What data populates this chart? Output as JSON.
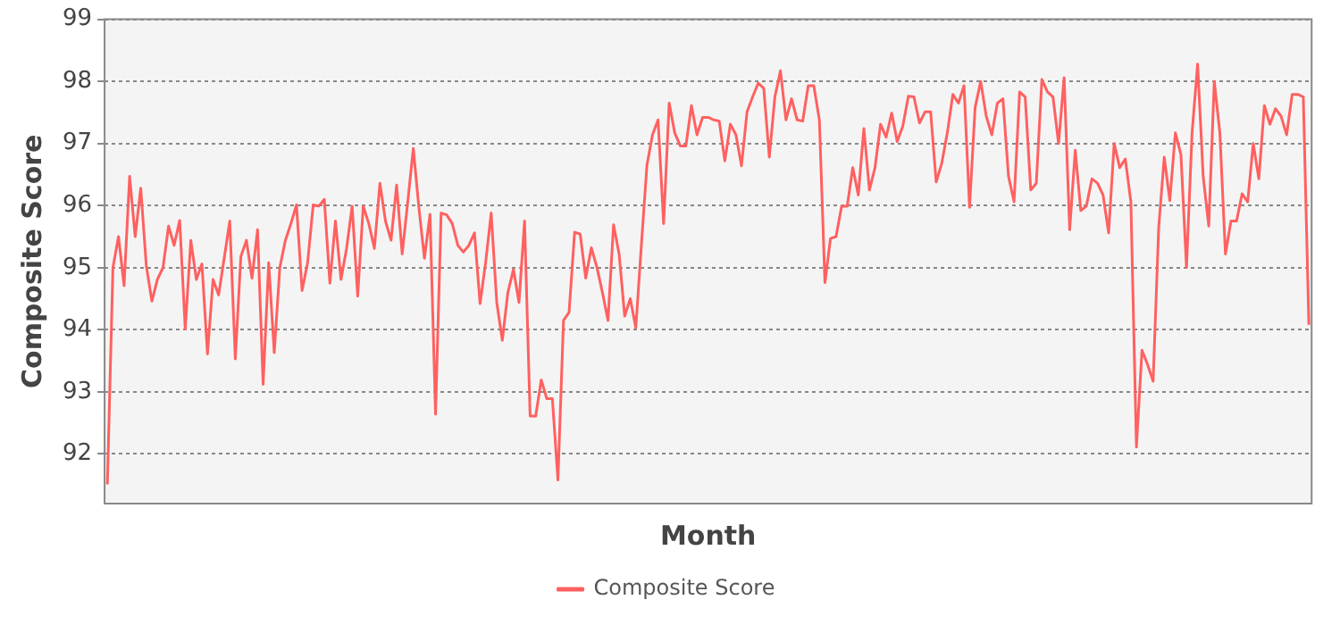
{
  "chart_data": {
    "type": "line",
    "xlabel": "Month",
    "ylabel": "Composite Score",
    "categories": [
      null,
      null,
      null,
      null,
      null,
      null,
      null,
      null,
      null,
      null,
      null,
      null,
      null,
      null,
      null,
      null,
      null,
      null,
      null,
      null,
      null,
      null,
      null,
      null,
      null,
      null,
      null,
      null,
      null,
      null,
      null,
      null,
      null,
      null,
      null,
      null,
      null,
      null,
      null,
      null,
      null,
      null,
      null,
      null,
      null,
      null,
      null,
      null,
      null,
      null,
      null,
      null,
      null,
      null,
      null,
      null,
      null,
      null,
      null,
      null,
      null,
      null,
      null,
      null,
      null,
      null,
      null,
      null,
      null,
      null,
      null,
      null,
      null,
      null,
      null,
      null,
      null,
      null,
      null,
      null,
      null,
      null,
      null,
      null,
      null,
      null,
      null,
      null,
      null,
      null,
      null,
      null,
      null,
      null,
      null,
      null,
      null,
      null,
      null,
      null,
      null,
      null,
      null,
      null,
      null,
      null,
      null,
      null,
      null,
      null,
      null,
      null,
      null,
      null,
      null,
      null,
      null,
      null,
      null,
      null,
      null,
      null,
      null,
      null,
      null,
      null,
      null,
      null,
      null,
      null,
      null,
      null,
      null,
      null,
      null,
      null,
      null,
      null,
      null,
      null,
      null,
      null,
      null,
      null,
      null,
      null,
      null,
      null,
      null,
      null,
      null,
      null,
      null,
      null,
      null,
      null,
      null,
      null,
      null,
      null,
      null,
      null,
      null,
      null,
      null,
      null,
      null,
      null,
      null,
      null,
      null,
      null,
      null,
      null,
      null,
      null,
      null,
      null,
      null,
      null,
      null,
      null,
      null,
      null,
      null,
      null,
      null,
      null,
      null,
      null,
      null,
      null,
      null,
      null,
      null,
      null,
      null,
      null,
      null,
      null,
      null,
      null,
      null,
      null,
      null,
      null,
      null,
      null,
      null,
      null,
      null,
      null,
      null,
      null,
      null,
      null,
      null
    ],
    "series": [
      {
        "name": "Composite Score",
        "color": "#ff6060",
        "values": [
          91.51,
          95.0,
          95.5,
          94.71,
          96.47,
          95.5,
          96.28,
          95.03,
          94.46,
          94.81,
          95.0,
          95.67,
          95.36,
          95.76,
          94.01,
          95.44,
          94.81,
          95.06,
          93.61,
          94.81,
          94.56,
          95.15,
          95.75,
          93.53,
          95.18,
          95.44,
          94.83,
          95.61,
          93.12,
          95.08,
          93.63,
          95.0,
          95.44,
          95.71,
          96.01,
          94.63,
          95.08,
          96.01,
          95.99,
          96.1,
          94.75,
          95.75,
          94.81,
          95.31,
          95.99,
          94.54,
          95.99,
          95.71,
          95.31,
          96.36,
          95.75,
          95.44,
          96.33,
          95.22,
          96.06,
          96.92,
          95.97,
          95.15,
          95.86,
          92.64,
          95.88,
          95.85,
          95.71,
          95.36,
          95.25,
          95.36,
          95.56,
          94.42,
          95.08,
          95.88,
          94.44,
          93.83,
          94.6,
          94.97,
          94.44,
          95.75,
          92.61,
          92.61,
          93.19,
          92.89,
          92.89,
          91.58,
          94.15,
          94.28,
          95.57,
          95.54,
          94.83,
          95.32,
          95.01,
          94.6,
          94.15,
          95.69,
          95.22,
          94.22,
          94.5,
          94.03,
          95.36,
          96.65,
          97.14,
          97.38,
          95.71,
          97.65,
          97.17,
          96.96,
          96.96,
          97.61,
          97.14,
          97.42,
          97.42,
          97.38,
          97.36,
          96.72,
          97.31,
          97.14,
          96.64,
          97.51,
          97.75,
          97.97,
          97.89,
          96.78,
          97.75,
          98.17,
          97.38,
          97.72,
          97.38,
          97.36,
          97.93,
          97.93,
          97.38,
          94.76,
          95.47,
          95.5,
          95.99,
          95.99,
          96.61,
          96.17,
          97.24,
          96.25,
          96.61,
          97.31,
          97.1,
          97.49,
          97.03,
          97.28,
          97.76,
          97.75,
          97.33,
          97.51,
          97.51,
          96.38,
          96.68,
          97.17,
          97.79,
          97.65,
          97.93,
          95.97,
          97.58,
          98.0,
          97.44,
          97.14,
          97.65,
          97.72,
          96.47,
          96.06,
          97.83,
          97.75,
          96.25,
          96.36,
          98.03,
          97.83,
          97.75,
          97.0,
          98.06,
          95.61,
          96.89,
          95.92,
          95.99,
          96.43,
          96.36,
          96.17,
          95.56,
          97.0,
          96.61,
          96.75,
          96.06,
          92.11,
          93.67,
          93.44,
          93.17,
          95.64,
          96.78,
          96.08,
          97.17,
          96.82,
          95.0,
          97.17,
          98.28,
          96.47,
          95.67,
          98.0,
          97.17,
          95.22,
          95.75,
          95.75,
          96.19,
          96.06,
          97.0,
          96.43,
          97.61,
          97.31,
          97.56,
          97.44,
          97.14,
          97.79,
          97.79,
          97.75,
          94.08
        ]
      }
    ],
    "ylim": [
      91.2,
      99
    ],
    "yticks": [
      92,
      93,
      94,
      95,
      96,
      97,
      98,
      99
    ],
    "grid": "y",
    "legend": "bottom",
    "marker": "none",
    "line_style": "solid"
  }
}
